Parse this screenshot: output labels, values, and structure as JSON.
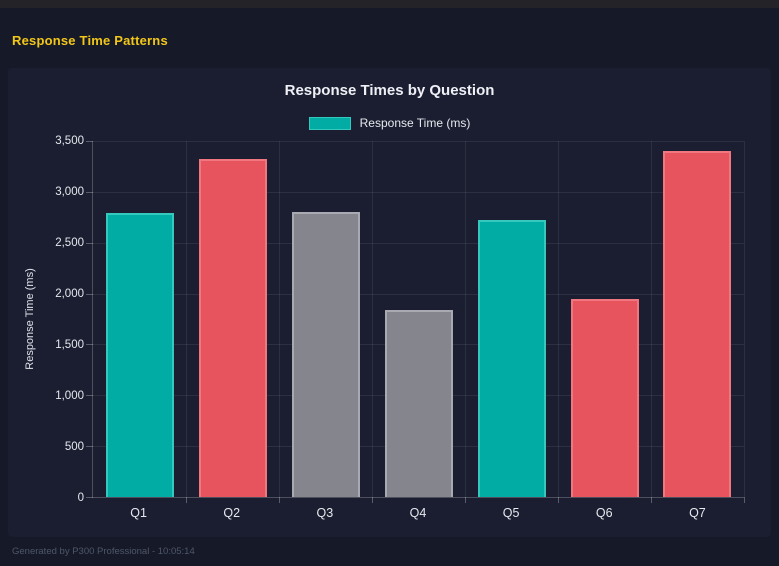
{
  "header": {
    "title": "Response Time Patterns"
  },
  "footer": {
    "text": "Generated by P300 Professional - 10:05:14"
  },
  "colors": {
    "page_background": "#161a28",
    "panel_background": "#1b1e30",
    "header_title": "#f2c718",
    "teal": "#00aca4",
    "red": "#e8545e",
    "gray": "#85868d"
  },
  "chart_data": {
    "type": "bar",
    "title": "Response Times by Question",
    "legend": [
      {
        "label": "Response Time (ms)",
        "color": "#00aca4",
        "border": "#35c9be"
      }
    ],
    "legend_position": "top",
    "categories": [
      "Q1",
      "Q2",
      "Q3",
      "Q4",
      "Q5",
      "Q6",
      "Q7"
    ],
    "values": [
      2795,
      3320,
      2805,
      1840,
      2725,
      1950,
      3405
    ],
    "bar_colors": [
      "#00aca4",
      "#e8545e",
      "#85868d",
      "#85868d",
      "#00aca4",
      "#e8545e",
      "#e8545e"
    ],
    "bar_border_colors": [
      "#35c9be",
      "#f0777f",
      "#a9aab1",
      "#a9aab1",
      "#35c9be",
      "#f0777f",
      "#f0777f"
    ],
    "xlabel": "",
    "ylabel": "Response Time (ms)",
    "ylim": [
      0,
      3500
    ],
    "yticks": [
      0,
      500,
      1000,
      1500,
      2000,
      2500,
      3000,
      3500
    ],
    "ytick_labels": [
      "0",
      "500",
      "1,000",
      "1,500",
      "2,000",
      "2,500",
      "3,000",
      "3,500"
    ],
    "grid": true
  }
}
